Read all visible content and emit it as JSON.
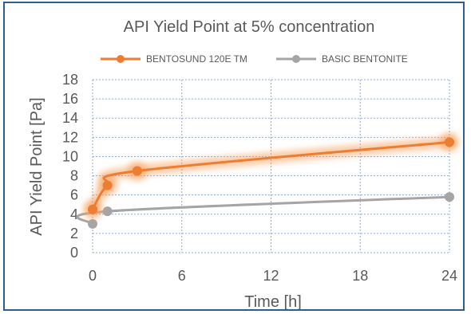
{
  "chart_data": {
    "type": "line",
    "title": "API Yield Point at 5% concentration",
    "xlabel": "Time [h]",
    "ylabel": "API Yield Point [Pa]",
    "xlim": [
      0,
      24
    ],
    "ylim": [
      0,
      18
    ],
    "xticks": [
      0,
      6,
      12,
      18,
      24
    ],
    "yticks": [
      0,
      2,
      4,
      6,
      8,
      10,
      12,
      14,
      16,
      18
    ],
    "grid": true,
    "legend_position": "top",
    "series": [
      {
        "name": "BENTOSUND 120E TM",
        "color": "#ed7d31",
        "glow": true,
        "x": [
          0,
          1,
          3,
          24
        ],
        "y": [
          4.5,
          7.0,
          8.5,
          11.5
        ]
      },
      {
        "name": "BASIC BENTONITE",
        "color": "#a5a5a5",
        "glow": false,
        "x": [
          0,
          1,
          24
        ],
        "y": [
          3.0,
          4.3,
          5.8
        ]
      }
    ]
  }
}
